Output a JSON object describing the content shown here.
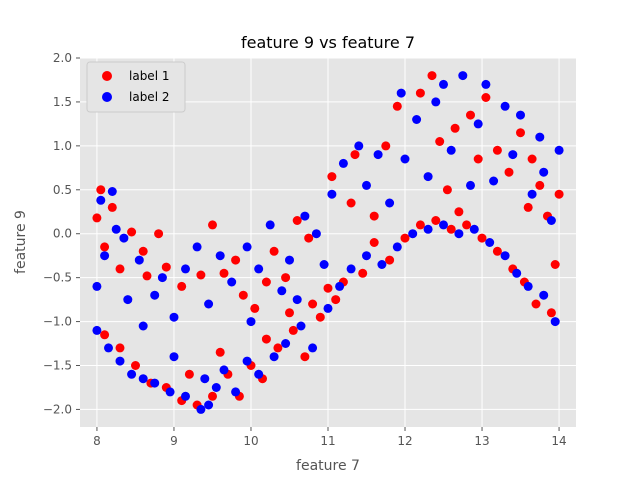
{
  "chart_data": {
    "type": "scatter",
    "title": "feature 9 vs feature 7",
    "xlabel": "feature 7",
    "ylabel": "feature 9",
    "xlim": [
      7.78,
      14.22
    ],
    "ylim": [
      -2.2,
      2.0
    ],
    "xticks": [
      8,
      9,
      10,
      11,
      12,
      13,
      14
    ],
    "yticks": [
      -2.0,
      -1.5,
      -1.0,
      -0.5,
      0.0,
      0.5,
      1.0,
      1.5,
      2.0
    ],
    "xtick_labels": [
      "8",
      "9",
      "10",
      "11",
      "12",
      "13",
      "14"
    ],
    "ytick_labels": [
      "−2.0",
      "−1.5",
      "−1.0",
      "−0.5",
      "0.0",
      "0.5",
      "1.0",
      "1.5",
      "2.0"
    ],
    "grid": true,
    "legend_position": "top-left",
    "background_color": "#e5e5e5",
    "grid_color": "#ffffff",
    "series": [
      {
        "name": "label 1",
        "color": "#ff0000",
        "points": [
          [
            8.0,
            0.18
          ],
          [
            8.05,
            0.5
          ],
          [
            8.1,
            -0.15
          ],
          [
            8.2,
            0.3
          ],
          [
            8.3,
            -0.4
          ],
          [
            8.45,
            0.02
          ],
          [
            8.6,
            -0.2
          ],
          [
            8.65,
            -0.48
          ],
          [
            8.8,
            0.0
          ],
          [
            8.9,
            -0.38
          ],
          [
            9.1,
            -0.6
          ],
          [
            9.35,
            -0.47
          ],
          [
            9.5,
            0.1
          ],
          [
            9.65,
            -0.45
          ],
          [
            9.8,
            -0.3
          ],
          [
            9.9,
            -0.7
          ],
          [
            10.05,
            -0.85
          ],
          [
            10.2,
            -0.55
          ],
          [
            10.3,
            -0.2
          ],
          [
            10.45,
            -0.5
          ],
          [
            10.6,
            0.15
          ],
          [
            10.75,
            -0.05
          ],
          [
            10.8,
            -0.8
          ],
          [
            11.0,
            -0.62
          ],
          [
            11.05,
            0.65
          ],
          [
            11.3,
            0.35
          ],
          [
            11.35,
            0.9
          ],
          [
            11.6,
            0.2
          ],
          [
            11.75,
            1.0
          ],
          [
            11.9,
            1.45
          ],
          [
            12.2,
            1.6
          ],
          [
            12.35,
            1.8
          ],
          [
            12.45,
            1.05
          ],
          [
            12.55,
            0.5
          ],
          [
            12.65,
            1.2
          ],
          [
            12.7,
            0.25
          ],
          [
            12.85,
            1.35
          ],
          [
            12.95,
            0.85
          ],
          [
            13.05,
            1.55
          ],
          [
            13.2,
            0.95
          ],
          [
            13.35,
            0.7
          ],
          [
            13.5,
            1.15
          ],
          [
            13.6,
            0.3
          ],
          [
            13.65,
            0.85
          ],
          [
            13.75,
            0.55
          ],
          [
            13.85,
            0.2
          ],
          [
            13.95,
            -0.35
          ],
          [
            14.0,
            0.45
          ],
          [
            8.1,
            -1.15
          ],
          [
            8.3,
            -1.3
          ],
          [
            8.5,
            -1.5
          ],
          [
            8.7,
            -1.7
          ],
          [
            8.9,
            -1.75
          ],
          [
            9.1,
            -1.9
          ],
          [
            9.3,
            -1.95
          ],
          [
            9.5,
            -1.85
          ],
          [
            9.7,
            -1.6
          ],
          [
            9.85,
            -1.85
          ],
          [
            10.0,
            -1.5
          ],
          [
            10.15,
            -1.65
          ],
          [
            10.35,
            -1.3
          ],
          [
            10.55,
            -1.1
          ],
          [
            10.7,
            -1.4
          ],
          [
            10.9,
            -0.95
          ],
          [
            11.1,
            -0.75
          ],
          [
            11.2,
            -0.55
          ],
          [
            11.45,
            -0.45
          ],
          [
            11.6,
            -0.1
          ],
          [
            11.8,
            -0.3
          ],
          [
            12.0,
            -0.05
          ],
          [
            12.2,
            0.1
          ],
          [
            12.4,
            0.15
          ],
          [
            12.6,
            0.05
          ],
          [
            12.8,
            0.1
          ],
          [
            13.0,
            -0.05
          ],
          [
            13.2,
            -0.2
          ],
          [
            13.4,
            -0.4
          ],
          [
            13.55,
            -0.55
          ],
          [
            13.7,
            -0.8
          ],
          [
            13.9,
            -0.9
          ],
          [
            9.2,
            -1.6
          ],
          [
            9.6,
            -1.35
          ],
          [
            10.2,
            -1.2
          ],
          [
            10.5,
            -0.9
          ]
        ]
      },
      {
        "name": "label 2",
        "color": "#0000ff",
        "points": [
          [
            8.0,
            -0.6
          ],
          [
            8.05,
            0.38
          ],
          [
            8.1,
            -0.25
          ],
          [
            8.2,
            0.48
          ],
          [
            8.25,
            0.05
          ],
          [
            8.35,
            -0.05
          ],
          [
            8.4,
            -0.75
          ],
          [
            8.55,
            -0.3
          ],
          [
            8.75,
            -0.7
          ],
          [
            8.85,
            -0.5
          ],
          [
            9.0,
            -0.95
          ],
          [
            9.15,
            -0.4
          ],
          [
            9.3,
            -0.15
          ],
          [
            9.45,
            -0.8
          ],
          [
            9.6,
            -0.25
          ],
          [
            9.75,
            -0.55
          ],
          [
            9.95,
            -0.15
          ],
          [
            10.1,
            -0.4
          ],
          [
            10.25,
            0.1
          ],
          [
            10.4,
            -0.65
          ],
          [
            10.5,
            -0.3
          ],
          [
            10.7,
            0.2
          ],
          [
            10.85,
            0.0
          ],
          [
            10.95,
            -0.35
          ],
          [
            11.05,
            0.45
          ],
          [
            11.2,
            0.8
          ],
          [
            11.4,
            1.0
          ],
          [
            11.5,
            0.55
          ],
          [
            11.65,
            0.9
          ],
          [
            11.8,
            0.35
          ],
          [
            11.95,
            1.6
          ],
          [
            12.0,
            0.85
          ],
          [
            12.15,
            1.3
          ],
          [
            12.3,
            0.65
          ],
          [
            12.4,
            1.5
          ],
          [
            12.5,
            1.7
          ],
          [
            12.6,
            0.95
          ],
          [
            12.75,
            1.8
          ],
          [
            12.85,
            0.55
          ],
          [
            12.95,
            1.25
          ],
          [
            13.05,
            1.7
          ],
          [
            13.15,
            0.6
          ],
          [
            13.3,
            1.45
          ],
          [
            13.4,
            0.9
          ],
          [
            13.5,
            1.35
          ],
          [
            13.65,
            0.45
          ],
          [
            13.75,
            1.1
          ],
          [
            13.8,
            0.7
          ],
          [
            13.9,
            0.15
          ],
          [
            14.0,
            0.95
          ],
          [
            8.0,
            -1.1
          ],
          [
            8.15,
            -1.3
          ],
          [
            8.3,
            -1.45
          ],
          [
            8.45,
            -1.6
          ],
          [
            8.6,
            -1.65
          ],
          [
            8.75,
            -1.7
          ],
          [
            8.95,
            -1.8
          ],
          [
            9.15,
            -1.85
          ],
          [
            9.35,
            -2.0
          ],
          [
            9.45,
            -1.95
          ],
          [
            9.55,
            -1.75
          ],
          [
            9.65,
            -1.55
          ],
          [
            9.8,
            -1.8
          ],
          [
            9.95,
            -1.45
          ],
          [
            10.1,
            -1.6
          ],
          [
            10.3,
            -1.4
          ],
          [
            10.45,
            -1.25
          ],
          [
            10.65,
            -1.05
          ],
          [
            10.8,
            -1.3
          ],
          [
            11.0,
            -0.85
          ],
          [
            11.15,
            -0.6
          ],
          [
            11.3,
            -0.4
          ],
          [
            11.5,
            -0.25
          ],
          [
            11.7,
            -0.35
          ],
          [
            11.9,
            -0.15
          ],
          [
            12.1,
            0.0
          ],
          [
            12.3,
            0.05
          ],
          [
            12.5,
            0.1
          ],
          [
            12.7,
            0.0
          ],
          [
            12.9,
            0.05
          ],
          [
            13.1,
            -0.1
          ],
          [
            13.3,
            -0.25
          ],
          [
            13.45,
            -0.45
          ],
          [
            13.6,
            -0.6
          ],
          [
            13.8,
            -0.7
          ],
          [
            13.95,
            -1.0
          ],
          [
            8.6,
            -1.05
          ],
          [
            9.0,
            -1.4
          ],
          [
            9.4,
            -1.65
          ],
          [
            10.0,
            -1.0
          ],
          [
            10.6,
            -0.75
          ]
        ]
      }
    ]
  }
}
